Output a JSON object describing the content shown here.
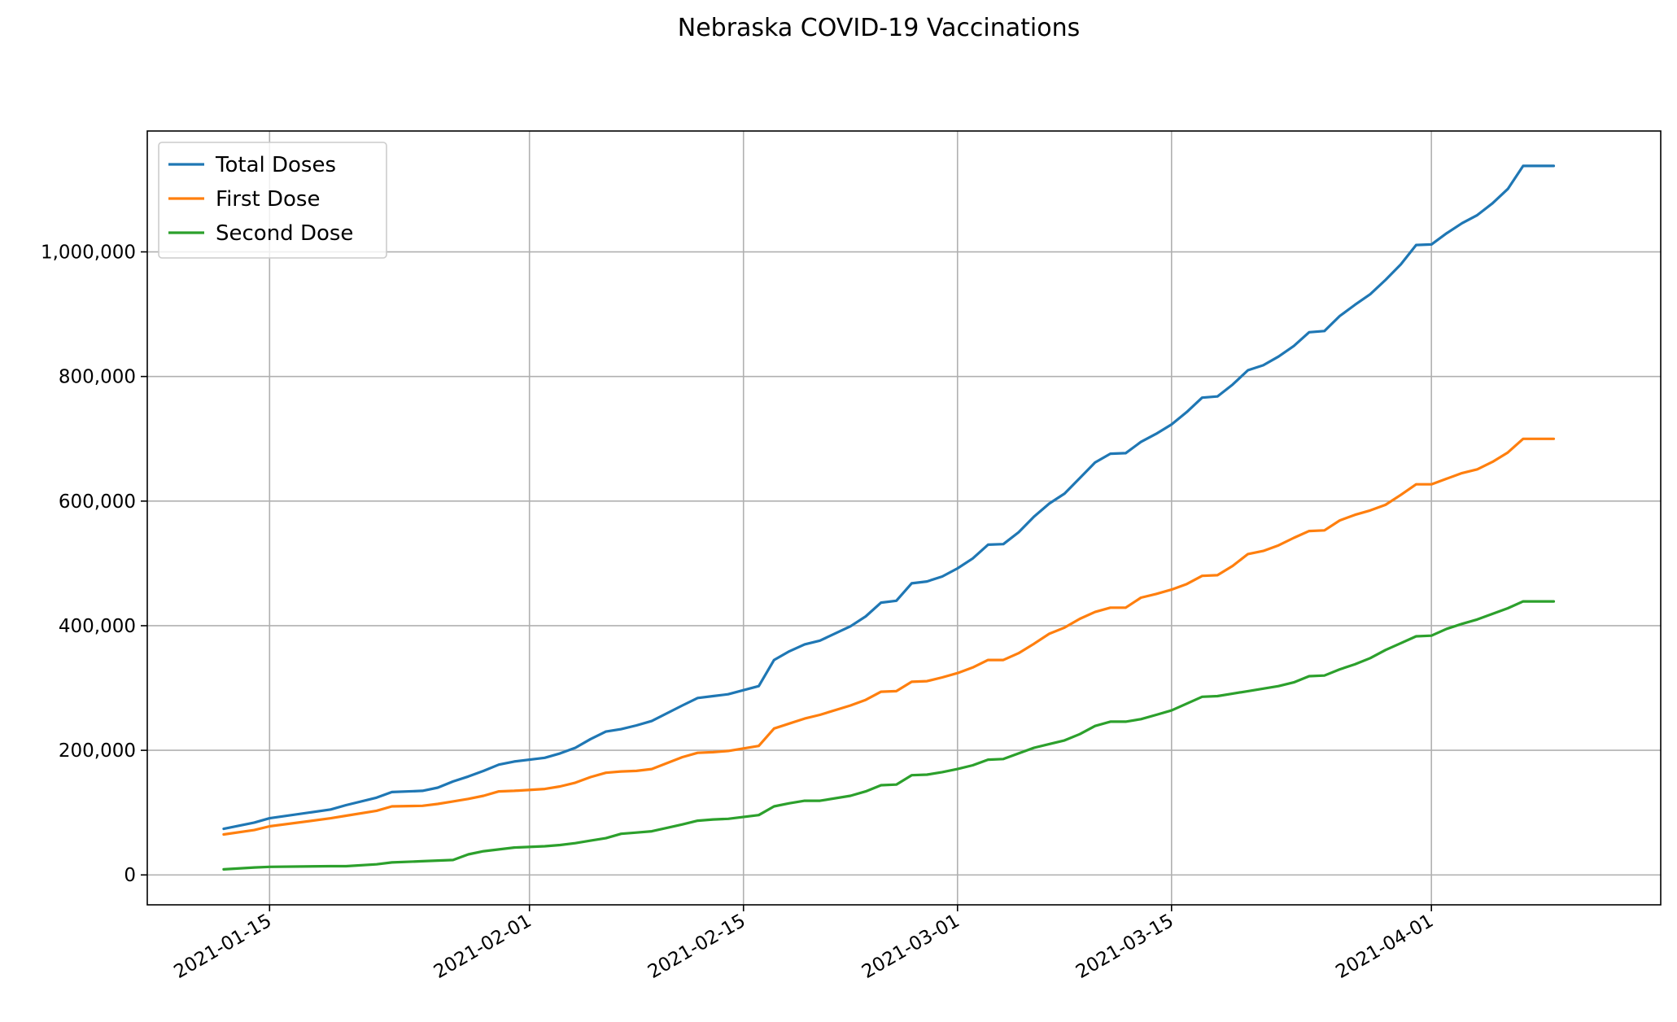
{
  "chart_data": {
    "type": "line",
    "title": "Nebraska COVID-19 Vaccinations",
    "xlabel": "",
    "ylabel": "",
    "x_type": "date",
    "xlim": [
      "2021-01-07",
      "2021-04-16"
    ],
    "ylim": [
      -48000,
      1194000
    ],
    "x_ticks": [
      "2021-01-15",
      "2021-02-01",
      "2021-02-15",
      "2021-03-01",
      "2021-03-15",
      "2021-04-01"
    ],
    "y_ticks": [
      0,
      200000,
      400000,
      600000,
      800000,
      1000000
    ],
    "y_tick_labels": [
      "0",
      "200,000",
      "400,000",
      "600,000",
      "800,000",
      "1,000,000"
    ],
    "grid": true,
    "legend_position": "top-left",
    "x": [
      "2021-01-12",
      "2021-01-14",
      "2021-01-15",
      "2021-01-19",
      "2021-01-20",
      "2021-01-22",
      "2021-01-23",
      "2021-01-25",
      "2021-01-26",
      "2021-01-27",
      "2021-01-28",
      "2021-01-29",
      "2021-01-30",
      "2021-01-31",
      "2021-02-02",
      "2021-02-03",
      "2021-02-04",
      "2021-02-05",
      "2021-02-06",
      "2021-02-07",
      "2021-02-08",
      "2021-02-09",
      "2021-02-11",
      "2021-02-12",
      "2021-02-13",
      "2021-02-14",
      "2021-02-16",
      "2021-02-17",
      "2021-02-18",
      "2021-02-19",
      "2021-02-20",
      "2021-02-22",
      "2021-02-23",
      "2021-02-24",
      "2021-02-25",
      "2021-02-26",
      "2021-02-27",
      "2021-02-28",
      "2021-03-01",
      "2021-03-02",
      "2021-03-03",
      "2021-03-04",
      "2021-03-05",
      "2021-03-06",
      "2021-03-07",
      "2021-03-08",
      "2021-03-09",
      "2021-03-10",
      "2021-03-11",
      "2021-03-12",
      "2021-03-13",
      "2021-03-14",
      "2021-03-15",
      "2021-03-16",
      "2021-03-17",
      "2021-03-18",
      "2021-03-19",
      "2021-03-20",
      "2021-03-21",
      "2021-03-22",
      "2021-03-23",
      "2021-03-24",
      "2021-03-25",
      "2021-03-26",
      "2021-03-27",
      "2021-03-28",
      "2021-03-29",
      "2021-03-30",
      "2021-03-31",
      "2021-04-01",
      "2021-04-02",
      "2021-04-03",
      "2021-04-04",
      "2021-04-05",
      "2021-04-06",
      "2021-04-07",
      "2021-04-08",
      "2021-04-09"
    ],
    "series": [
      {
        "name": "Total Doses",
        "color": "#1f77b4",
        "values": [
          74000,
          84000,
          91000,
          105000,
          112000,
          124000,
          133000,
          135000,
          140000,
          150000,
          158000,
          167000,
          177000,
          182000,
          188000,
          195000,
          204000,
          218000,
          230000,
          234000,
          240000,
          247000,
          272000,
          284000,
          287000,
          290000,
          303000,
          345000,
          359000,
          370000,
          376000,
          399000,
          415000,
          437000,
          440000,
          468000,
          471000,
          479000,
          492000,
          508000,
          530000,
          531000,
          550000,
          575000,
          596000,
          612000,
          637000,
          662000,
          676000,
          677000,
          695000,
          708000,
          723000,
          743000,
          766000,
          768000,
          787000,
          810000,
          818000,
          832000,
          849000,
          871000,
          873000,
          897000,
          915000,
          932000,
          955000,
          980000,
          1011000,
          1012000,
          1030000,
          1046000,
          1059000,
          1078000,
          1101000,
          1138000,
          1138000,
          1138000
        ]
      },
      {
        "name": "First Dose",
        "color": "#ff7f0e",
        "values": [
          65000,
          72000,
          78000,
          91000,
          95000,
          103000,
          110000,
          111000,
          114000,
          118000,
          122000,
          127000,
          134000,
          135000,
          138000,
          142000,
          148000,
          157000,
          164000,
          166000,
          167000,
          170000,
          189000,
          196000,
          197000,
          199000,
          207000,
          235000,
          243000,
          251000,
          257000,
          272000,
          281000,
          294000,
          295000,
          310000,
          311000,
          317000,
          324000,
          333000,
          345000,
          345000,
          356000,
          371000,
          387000,
          397000,
          411000,
          422000,
          429000,
          429000,
          445000,
          451000,
          458000,
          467000,
          480000,
          481000,
          496000,
          515000,
          520000,
          529000,
          541000,
          552000,
          553000,
          569000,
          578000,
          585000,
          594000,
          610000,
          627000,
          627000,
          636000,
          645000,
          651000,
          663000,
          678000,
          700000,
          700000,
          700000
        ]
      },
      {
        "name": "Second Dose",
        "color": "#2ca02c",
        "values": [
          9000,
          12000,
          13000,
          14000,
          14000,
          17000,
          20000,
          22000,
          23000,
          24000,
          33000,
          38000,
          41000,
          44000,
          46000,
          48000,
          51000,
          55000,
          59000,
          66000,
          68000,
          70000,
          81000,
          87000,
          89000,
          90000,
          96000,
          110000,
          115000,
          119000,
          119000,
          127000,
          134000,
          144000,
          145000,
          160000,
          161000,
          165000,
          170000,
          176000,
          185000,
          186000,
          195000,
          204000,
          210000,
          216000,
          226000,
          239000,
          246000,
          246000,
          250000,
          257000,
          264000,
          275000,
          286000,
          287000,
          291000,
          295000,
          299000,
          303000,
          309000,
          319000,
          320000,
          330000,
          338000,
          348000,
          361000,
          372000,
          383000,
          384000,
          395000,
          403000,
          410000,
          419000,
          428000,
          439000,
          439000,
          439000
        ]
      }
    ]
  }
}
